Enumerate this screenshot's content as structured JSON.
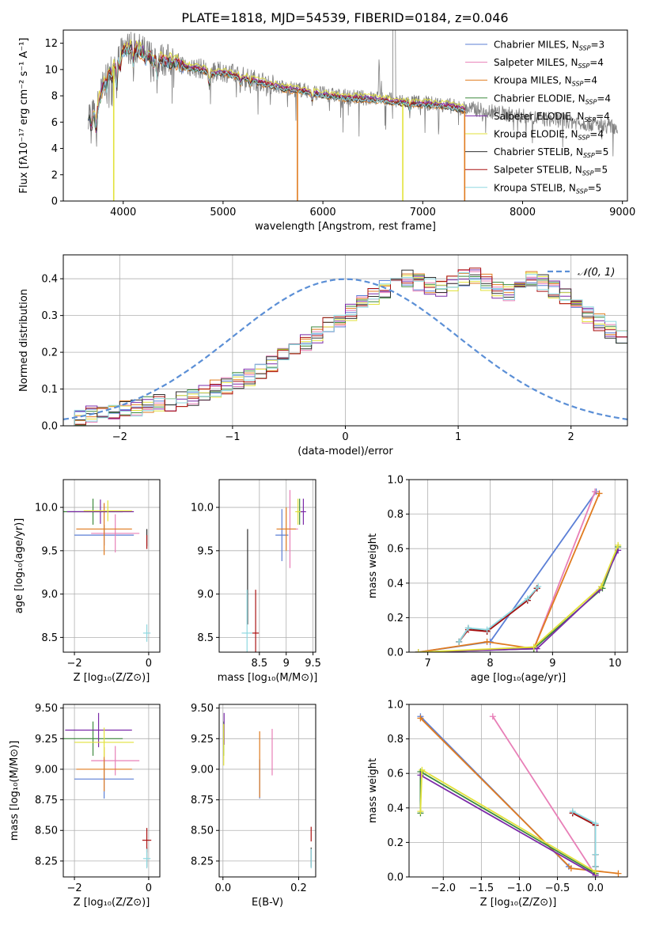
{
  "figure_title": "PLATE=1818, MJD=54539, FIBERID=0184, z=0.046",
  "colors": {
    "chabrier_miles": "#5b7fd6",
    "salpeter_miles": "#e87fb7",
    "kroupa_miles": "#e07b1f",
    "chabrier_elodie": "#3e8a3e",
    "salpeter_elodie": "#7b2aa8",
    "kroupa_elodie": "#e2e23a",
    "chabrier_stelib": "#303030",
    "salpeter_stelib": "#aa1111",
    "kroupa_stelib": "#8fd8e0",
    "normal_line": "#5b8fd6",
    "observed_spectrum": "#808080"
  },
  "chart_data": [
    {
      "id": "spectrum",
      "type": "line",
      "title": "PLATE=1818, MJD=54539, FIBERID=0184, z=0.046",
      "xlabel": "wavelength [Angstrom, rest frame]",
      "ylabel": "Flux [fλ10⁻¹⁷ erg cm⁻² s⁻¹ A⁻¹]",
      "xlim": [
        3400,
        9050
      ],
      "ylim": [
        0,
        13
      ],
      "xticks": [
        4000,
        5000,
        6000,
        7000,
        8000,
        9000
      ],
      "yticks": [
        0,
        2,
        4,
        6,
        8,
        10,
        12
      ],
      "grid": false,
      "legend_position": "top-right",
      "legend": [
        {
          "label": "Chabrier MILES, N",
          "sub": "SSP",
          "tail": "=3",
          "color_key": "chabrier_miles"
        },
        {
          "label": "Salpeter MILES, N",
          "sub": "SSP",
          "tail": "=4",
          "color_key": "salpeter_miles"
        },
        {
          "label": "Kroupa MILES, N",
          "sub": "SSP",
          "tail": "=4",
          "color_key": "kroupa_miles"
        },
        {
          "label": "Chabrier ELODIE, N",
          "sub": "SSP",
          "tail": "=4",
          "color_key": "chabrier_elodie"
        },
        {
          "label": "Salpeter ELODIE, N",
          "sub": "SSP",
          "tail": "=4",
          "color_key": "salpeter_elodie"
        },
        {
          "label": "Kroupa ELODIE, N",
          "sub": "SSP",
          "tail": "=4",
          "color_key": "kroupa_elodie"
        },
        {
          "label": "Chabrier STELIB, N",
          "sub": "SSP",
          "tail": "=5",
          "color_key": "chabrier_stelib"
        },
        {
          "label": "Salpeter STELIB, N",
          "sub": "SSP",
          "tail": "=5",
          "color_key": "salpeter_stelib"
        },
        {
          "label": "Kroupa STELIB, N",
          "sub": "SSP",
          "tail": "=5",
          "color_key": "kroupa_stelib"
        }
      ],
      "model_continuum": [
        [
          3650,
          6.6
        ],
        [
          3720,
          6.4
        ],
        [
          3800,
          8.7
        ],
        [
          3900,
          10.2
        ],
        [
          3950,
          10.6
        ],
        [
          4000,
          11.4
        ],
        [
          4100,
          11.6
        ],
        [
          4200,
          11.2
        ],
        [
          4300,
          10.8
        ],
        [
          4400,
          10.6
        ],
        [
          4500,
          10.5
        ],
        [
          4600,
          10.2
        ],
        [
          4700,
          10.0
        ],
        [
          4800,
          9.9
        ],
        [
          4900,
          9.6
        ],
        [
          5000,
          9.7
        ],
        [
          5200,
          9.3
        ],
        [
          5400,
          8.9
        ],
        [
          5600,
          8.5
        ],
        [
          5800,
          8.3
        ],
        [
          6000,
          8.0
        ],
        [
          6200,
          7.8
        ],
        [
          6400,
          7.7
        ],
        [
          6600,
          7.6
        ],
        [
          6800,
          7.4
        ],
        [
          7000,
          7.3
        ],
        [
          7200,
          7.2
        ],
        [
          7400,
          6.9
        ],
        [
          7600,
          6.8
        ],
        [
          7800,
          6.5
        ],
        [
          8000,
          6.3
        ],
        [
          8200,
          6.1
        ],
        [
          8400,
          6.0
        ],
        [
          8600,
          5.8
        ],
        [
          8800,
          5.6
        ],
        [
          8950,
          5.5
        ]
      ],
      "model_offsets": [
        0.0,
        0.15,
        -0.1,
        0.05,
        0.2,
        0.35,
        -0.05,
        0.1,
        0.0
      ],
      "model_end_wavelength": [
        7430,
        7430,
        7430,
        7430,
        7430,
        7430,
        7430,
        7430,
        7430
      ],
      "absorption_drops": [
        {
          "wavelength": 3905,
          "color_key": "kroupa_elodie"
        },
        {
          "wavelength": 5745,
          "color_key": "kroupa_miles"
        },
        {
          "wavelength": 6800,
          "color_key": "kroupa_elodie"
        },
        {
          "wavelength": 7420,
          "color_key": "kroupa_miles"
        }
      ]
    },
    {
      "id": "residuals",
      "type": "step",
      "xlabel": "(data-model)/error",
      "ylabel": "Normed distribution",
      "xlim": [
        -2.5,
        2.5
      ],
      "ylim": [
        0,
        0.465
      ],
      "xticks": [
        -2,
        -1,
        0,
        1,
        2
      ],
      "yticks": [
        0.0,
        0.1,
        0.2,
        0.3,
        0.4
      ],
      "grid": true,
      "legend_position": "top-right",
      "legend": [
        {
          "label": "𝒩(0, 1)",
          "style": "dashed",
          "color_key": "normal_line"
        }
      ],
      "bin_width": 0.1,
      "bin_start": -2.5,
      "base_values": [
        0.02,
        0.025,
        0.03,
        0.035,
        0.04,
        0.045,
        0.05,
        0.055,
        0.06,
        0.065,
        0.07,
        0.08,
        0.09,
        0.1,
        0.11,
        0.12,
        0.13,
        0.15,
        0.17,
        0.19,
        0.21,
        0.23,
        0.25,
        0.27,
        0.29,
        0.31,
        0.33,
        0.35,
        0.37,
        0.39,
        0.4,
        0.39,
        0.38,
        0.37,
        0.39,
        0.4,
        0.41,
        0.39,
        0.37,
        0.36,
        0.39,
        0.4,
        0.39,
        0.37,
        0.35,
        0.33,
        0.3,
        0.28,
        0.26,
        0.24,
        0.22,
        0.2,
        0.18,
        0.16,
        0.14,
        0.12,
        0.1,
        0.09,
        0.08,
        0.07,
        0.06,
        0.05,
        0.045,
        0.04,
        0.035,
        0.03,
        0.025,
        0.02
      ],
      "series_colors": [
        "chabrier_miles",
        "salpeter_miles",
        "kroupa_miles",
        "chabrier_elodie",
        "salpeter_elodie",
        "kroupa_elodie",
        "chabrier_stelib",
        "salpeter_stelib",
        "kroupa_stelib"
      ]
    },
    {
      "id": "age_vs_z",
      "type": "errorbar",
      "xlabel": "Z [log₁₀(Z/Z⊙)]",
      "ylabel": "age  [log₁₀(age/yr)]",
      "xlim": [
        -2.3,
        0.3
      ],
      "ylim": [
        8.33,
        10.32
      ],
      "xticks": [
        -2,
        0
      ],
      "yticks": [
        8.5,
        9.0,
        9.5,
        10.0
      ],
      "grid": true,
      "points": [
        {
          "color_key": "chabrier_miles",
          "x": -1.2,
          "xerr": 0.8,
          "y": 9.68,
          "yerr": 0.12
        },
        {
          "color_key": "salpeter_miles",
          "x": -0.9,
          "xerr": 0.65,
          "y": 9.7,
          "yerr": 0.22
        },
        {
          "color_key": "kroupa_miles",
          "x": -1.2,
          "xerr": 0.75,
          "y": 9.75,
          "yerr": 0.3
        },
        {
          "color_key": "chabrier_elodie",
          "x": -1.5,
          "xerr": 0.8,
          "y": 9.95,
          "yerr": 0.15
        },
        {
          "color_key": "salpeter_elodie",
          "x": -1.3,
          "xerr": 0.9,
          "y": 9.95,
          "yerr": 0.14
        },
        {
          "color_key": "kroupa_elodie",
          "x": -1.1,
          "xerr": 0.65,
          "y": 9.96,
          "yerr": 0.12
        },
        {
          "color_key": "chabrier_stelib",
          "x": -0.05,
          "xerr": 0.0,
          "y": 9.65,
          "yerr": 0.1
        },
        {
          "color_key": "salpeter_stelib",
          "x": -0.05,
          "xerr": 0.0,
          "y": 9.6,
          "yerr": 0.08
        },
        {
          "color_key": "kroupa_stelib",
          "x": -0.05,
          "xerr": 0.1,
          "y": 8.55,
          "yerr": 0.1
        }
      ]
    },
    {
      "id": "age_vs_mass",
      "type": "errorbar",
      "xlabel": "mass [log₁₀(M/M⊙)]",
      "ylabel": "",
      "xlim": [
        7.75,
        9.55
      ],
      "ylim": [
        8.33,
        10.32
      ],
      "xticks": [
        8.5,
        9.0,
        9.5
      ],
      "yticks": [
        8.5,
        9.0,
        9.5,
        10.0
      ],
      "grid": true,
      "points": [
        {
          "color_key": "chabrier_miles",
          "x": 8.92,
          "xerr": 0.12,
          "y": 9.68,
          "yerr": 0.3
        },
        {
          "color_key": "salpeter_miles",
          "x": 9.07,
          "xerr": 0.15,
          "y": 9.75,
          "yerr": 0.45
        },
        {
          "color_key": "kroupa_miles",
          "x": 9.0,
          "xerr": 0.18,
          "y": 9.75,
          "yerr": 0.25
        },
        {
          "color_key": "chabrier_elodie",
          "x": 9.25,
          "xerr": 0.05,
          "y": 9.95,
          "yerr": 0.15
        },
        {
          "color_key": "salpeter_elodie",
          "x": 9.32,
          "xerr": 0.05,
          "y": 9.95,
          "yerr": 0.15
        },
        {
          "color_key": "kroupa_elodie",
          "x": 9.22,
          "xerr": 0.05,
          "y": 9.95,
          "yerr": 0.15
        },
        {
          "color_key": "chabrier_stelib",
          "x": 8.28,
          "xerr": 0.0,
          "y": 9.2,
          "yerr": 0.55
        },
        {
          "color_key": "salpeter_stelib",
          "x": 8.43,
          "xerr": 0.06,
          "y": 8.55,
          "yerr": 0.5
        },
        {
          "color_key": "kroupa_stelib",
          "x": 8.27,
          "xerr": 0.1,
          "y": 8.55,
          "yerr": 0.5
        }
      ]
    },
    {
      "id": "weight_vs_age",
      "type": "line",
      "xlabel": "age  [log₁₀(age/yr)]",
      "ylabel": "mass weight",
      "xlim": [
        6.7,
        10.2
      ],
      "ylim": [
        0.0,
        1.0
      ],
      "xticks": [
        7,
        8,
        9,
        10
      ],
      "yticks": [
        0.0,
        0.2,
        0.4,
        0.6,
        0.8,
        1.0
      ],
      "grid": true,
      "series": [
        {
          "color_key": "chabrier_miles",
          "x": [
            6.85,
            8.0,
            9.7
          ],
          "y": [
            0.0,
            0.06,
            0.93
          ]
        },
        {
          "color_key": "salpeter_miles",
          "x": [
            6.85,
            8.7,
            9.68
          ],
          "y": [
            0.0,
            0.02,
            0.93
          ]
        },
        {
          "color_key": "kroupa_miles",
          "x": [
            6.85,
            7.95,
            8.7,
            9.75
          ],
          "y": [
            0.0,
            0.06,
            0.02,
            0.92
          ]
        },
        {
          "color_key": "chabrier_elodie",
          "x": [
            6.85,
            8.7,
            9.8,
            10.05
          ],
          "y": [
            0.0,
            0.02,
            0.37,
            0.61
          ]
        },
        {
          "color_key": "salpeter_elodie",
          "x": [
            6.85,
            8.75,
            9.75,
            10.05
          ],
          "y": [
            0.0,
            0.02,
            0.36,
            0.59
          ]
        },
        {
          "color_key": "kroupa_elodie",
          "x": [
            6.85,
            8.7,
            9.78,
            10.05
          ],
          "y": [
            0.0,
            0.03,
            0.38,
            0.62
          ]
        },
        {
          "color_key": "chabrier_stelib",
          "x": [
            7.5,
            7.65,
            7.95,
            8.6,
            8.75
          ],
          "y": [
            0.06,
            0.14,
            0.12,
            0.3,
            0.37
          ]
        },
        {
          "color_key": "salpeter_stelib",
          "x": [
            7.5,
            7.65,
            7.95,
            8.6,
            8.75
          ],
          "y": [
            0.06,
            0.13,
            0.12,
            0.3,
            0.37
          ]
        },
        {
          "color_key": "kroupa_stelib",
          "x": [
            7.5,
            7.65,
            7.95,
            8.6,
            8.77
          ],
          "y": [
            0.06,
            0.14,
            0.13,
            0.31,
            0.38
          ]
        }
      ]
    },
    {
      "id": "mass_vs_z",
      "type": "errorbar",
      "xlabel": "Z [log₁₀(Z/Z⊙)]",
      "ylabel": "mass [log₁₀(M/M⊙)]",
      "xlim": [
        -2.3,
        0.3
      ],
      "ylim": [
        8.12,
        9.53
      ],
      "xticks": [
        -2,
        0
      ],
      "yticks": [
        8.25,
        8.5,
        8.75,
        9.0,
        9.25,
        9.5
      ],
      "grid": true,
      "points": [
        {
          "color_key": "chabrier_miles",
          "x": -1.2,
          "xerr": 0.8,
          "y": 8.92,
          "yerr": 0.16
        },
        {
          "color_key": "salpeter_miles",
          "x": -0.9,
          "xerr": 0.65,
          "y": 9.07,
          "yerr": 0.12
        },
        {
          "color_key": "kroupa_miles",
          "x": -1.2,
          "xerr": 0.75,
          "y": 9.0,
          "yerr": 0.18
        },
        {
          "color_key": "chabrier_elodie",
          "x": -1.5,
          "xerr": 0.8,
          "y": 9.25,
          "yerr": 0.14
        },
        {
          "color_key": "salpeter_elodie",
          "x": -1.35,
          "xerr": 0.9,
          "y": 9.32,
          "yerr": 0.14
        },
        {
          "color_key": "kroupa_elodie",
          "x": -1.2,
          "xerr": 0.8,
          "y": 9.22,
          "yerr": 0.12
        },
        {
          "color_key": "chabrier_stelib",
          "x": -0.05,
          "xerr": 0.0,
          "y": 8.28,
          "yerr": 0.08
        },
        {
          "color_key": "salpeter_stelib",
          "x": -0.05,
          "xerr": 0.12,
          "y": 8.42,
          "yerr": 0.1
        },
        {
          "color_key": "kroupa_stelib",
          "x": -0.05,
          "xerr": 0.1,
          "y": 8.27,
          "yerr": 0.08
        }
      ]
    },
    {
      "id": "mass_vs_ebv",
      "type": "errorbar",
      "xlabel": "E(B-V)",
      "ylabel": "",
      "xlim": [
        -0.01,
        0.245
      ],
      "ylim": [
        8.12,
        9.53
      ],
      "xticks": [
        0.0,
        0.2
      ],
      "yticks": [
        8.25,
        8.5,
        8.75,
        9.0,
        9.25,
        9.5
      ],
      "grid": true,
      "points": [
        {
          "color_key": "chabrier_miles",
          "x": 0.097,
          "xerr": 0.0,
          "y": 8.92,
          "yerr": 0.16
        },
        {
          "color_key": "salpeter_miles",
          "x": 0.13,
          "xerr": 0.0,
          "y": 9.14,
          "yerr": 0.19
        },
        {
          "color_key": "kroupa_miles",
          "x": 0.097,
          "xerr": 0.0,
          "y": 9.04,
          "yerr": 0.27
        },
        {
          "color_key": "chabrier_elodie",
          "x": 0.002,
          "xerr": 0.0,
          "y": 9.25,
          "yerr": 0.14
        },
        {
          "color_key": "salpeter_elodie",
          "x": 0.003,
          "xerr": 0.0,
          "y": 9.33,
          "yerr": 0.13
        },
        {
          "color_key": "kroupa_elodie",
          "x": 0.002,
          "xerr": 0.0,
          "y": 9.2,
          "yerr": 0.17
        },
        {
          "color_key": "chabrier_stelib",
          "x": 0.233,
          "xerr": 0.0,
          "y": 8.28,
          "yerr": 0.08
        },
        {
          "color_key": "salpeter_stelib",
          "x": 0.233,
          "xerr": 0.0,
          "y": 8.47,
          "yerr": 0.06
        },
        {
          "color_key": "kroupa_stelib",
          "x": 0.233,
          "xerr": 0.0,
          "y": 8.27,
          "yerr": 0.08
        }
      ]
    },
    {
      "id": "weight_vs_z",
      "type": "line",
      "xlabel": "Z [log₁₀(Z/Z⊙)]",
      "ylabel": "mass weight",
      "xlim": [
        -2.45,
        0.42
      ],
      "ylim": [
        0.0,
        1.0
      ],
      "xticks": [
        -2.0,
        -1.5,
        -1.0,
        -0.5,
        0.0
      ],
      "yticks": [
        0.0,
        0.2,
        0.4,
        0.6,
        0.8,
        1.0
      ],
      "grid": true,
      "series": [
        {
          "color_key": "chabrier_miles",
          "x": [
            -2.3,
            -0.35
          ],
          "y": [
            0.93,
            0.06
          ]
        },
        {
          "color_key": "salpeter_miles",
          "x": [
            -1.35,
            0.0
          ],
          "y": [
            0.93,
            0.01
          ]
        },
        {
          "color_key": "kroupa_miles",
          "x": [
            -2.3,
            -0.32,
            0.3
          ],
          "y": [
            0.92,
            0.05,
            0.02
          ]
        },
        {
          "color_key": "chabrier_elodie",
          "x": [
            -2.3,
            -2.3,
            0.0
          ],
          "y": [
            0.37,
            0.61,
            0.02
          ]
        },
        {
          "color_key": "salpeter_elodie",
          "x": [
            -2.3,
            0.0
          ],
          "y": [
            0.59,
            0.01
          ]
        },
        {
          "color_key": "kroupa_elodie",
          "x": [
            -2.3,
            -2.28,
            0.0
          ],
          "y": [
            0.38,
            0.62,
            0.03
          ]
        },
        {
          "color_key": "chabrier_stelib",
          "x": [
            -0.3,
            0.0,
            0.0,
            0.0
          ],
          "y": [
            0.37,
            0.3,
            0.13,
            0.06
          ]
        },
        {
          "color_key": "salpeter_stelib",
          "x": [
            -0.3,
            0.0,
            0.0,
            0.0
          ],
          "y": [
            0.37,
            0.3,
            0.13,
            0.06
          ]
        },
        {
          "color_key": "kroupa_stelib",
          "x": [
            -0.3,
            0.0,
            0.0,
            0.0
          ],
          "y": [
            0.38,
            0.31,
            0.13,
            0.06
          ]
        }
      ]
    }
  ]
}
